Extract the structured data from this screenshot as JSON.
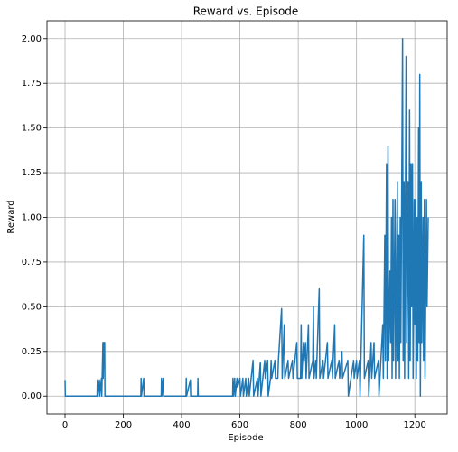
{
  "chart_data": {
    "type": "line",
    "title": "Reward vs. Episode",
    "x_label": "Episode",
    "y_label": "Reward",
    "x": [
      0,
      1,
      110,
      111,
      112,
      118,
      119,
      125,
      126,
      130,
      131,
      133,
      136,
      137,
      260,
      261,
      262,
      270,
      271,
      330,
      331,
      332,
      337,
      338,
      415,
      416,
      417,
      430,
      431,
      455,
      456,
      457,
      575,
      576,
      578,
      582,
      584,
      590,
      592,
      600,
      602,
      610,
      612,
      620,
      622,
      630,
      632,
      645,
      647,
      660,
      662,
      670,
      672,
      685,
      687,
      695,
      697,
      705,
      707,
      709,
      720,
      722,
      730,
      732,
      743,
      745,
      752,
      754,
      765,
      767,
      780,
      782,
      795,
      797,
      808,
      810,
      812,
      818,
      820,
      825,
      827,
      835,
      837,
      850,
      852,
      854,
      860,
      862,
      872,
      874,
      885,
      887,
      900,
      902,
      915,
      917,
      925,
      927,
      940,
      942,
      950,
      952,
      970,
      972,
      990,
      992,
      1000,
      1002,
      1010,
      1012,
      1025,
      1027,
      1040,
      1042,
      1050,
      1052,
      1060,
      1062,
      1075,
      1077,
      1090,
      1092,
      1097,
      1099,
      1103,
      1105,
      1108,
      1110,
      1115,
      1117,
      1120,
      1122,
      1125,
      1127,
      1130,
      1132,
      1134,
      1140,
      1142,
      1145,
      1147,
      1150,
      1152,
      1158,
      1160,
      1163,
      1165,
      1170,
      1172,
      1177,
      1179,
      1182,
      1184,
      1187,
      1189,
      1192,
      1194,
      1198,
      1200,
      1203,
      1205,
      1208,
      1210,
      1213,
      1215,
      1217,
      1219,
      1222,
      1224,
      1228,
      1230,
      1233,
      1235,
      1240,
      1242,
      1246
    ],
    "values": [
      0.09,
      0,
      0,
      0.09,
      0,
      0.09,
      0,
      0.1,
      0,
      0.3,
      0.1,
      0.3,
      0.3,
      0,
      0,
      0.1,
      0,
      0.1,
      0,
      0,
      0.1,
      0,
      0.1,
      0,
      0,
      0.1,
      0,
      0.09,
      0,
      0,
      0.1,
      0,
      0,
      0.1,
      0,
      0.1,
      0,
      0.1,
      0.05,
      0.1,
      0,
      0.1,
      0,
      0.1,
      0,
      0.1,
      0,
      0.2,
      0,
      0.1,
      0,
      0.19,
      0,
      0.2,
      0.1,
      0.2,
      0,
      0.1,
      0.2,
      0.1,
      0.2,
      0.1,
      0.1,
      0.2,
      0.49,
      0.1,
      0.4,
      0.1,
      0.2,
      0.1,
      0.2,
      0.1,
      0.3,
      0.1,
      0.1,
      0.4,
      0.1,
      0.3,
      0.2,
      0.3,
      0.1,
      0.4,
      0.1,
      0.2,
      0.5,
      0.1,
      0.2,
      0.1,
      0.6,
      0.1,
      0.2,
      0.1,
      0.3,
      0.1,
      0.2,
      0.1,
      0.4,
      0.1,
      0.2,
      0.1,
      0.25,
      0.1,
      0.2,
      0,
      0.2,
      0.1,
      0.2,
      0.1,
      0.2,
      0,
      0.9,
      0.1,
      0.2,
      0,
      0.3,
      0.1,
      0.3,
      0.1,
      0.2,
      0,
      0.4,
      0.1,
      0.9,
      0.2,
      1.3,
      0.1,
      1.4,
      0.2,
      0.7,
      0.3,
      1.0,
      0.1,
      1.1,
      0.2,
      0.7,
      1.1,
      0.1,
      1.2,
      0.2,
      0.9,
      0.1,
      1.0,
      0.3,
      2.0,
      0.2,
      1.2,
      0.1,
      1.9,
      0.3,
      1.2,
      0.1,
      1.6,
      0.2,
      1.3,
      0.5,
      1.3,
      0.1,
      1.1,
      0.4,
      1.1,
      0.1,
      1.0,
      0.2,
      1.5,
      0.3,
      1.8,
      0,
      1.2,
      0.3,
      1.0,
      0.2,
      1.1,
      0.1,
      1.1,
      0.5,
      1.0
    ],
    "color": "#1f77b4",
    "xlim": [
      -62,
      1311
    ],
    "ylim": [
      -0.1,
      2.1
    ],
    "xticks": [
      0,
      200,
      400,
      600,
      800,
      1000,
      1200
    ],
    "yticks": [
      {
        "value": 0,
        "label": "0.00"
      },
      {
        "value": 0.25,
        "label": "0.25"
      },
      {
        "value": 0.5,
        "label": "0.50"
      },
      {
        "value": 0.75,
        "label": "0.75"
      },
      {
        "value": 1,
        "label": "1.00"
      },
      {
        "value": 1.25,
        "label": "1.25"
      },
      {
        "value": 1.5,
        "label": "1.50"
      },
      {
        "value": 1.75,
        "label": "1.75"
      },
      {
        "value": 2,
        "label": "2.00"
      }
    ],
    "grid": true
  }
}
